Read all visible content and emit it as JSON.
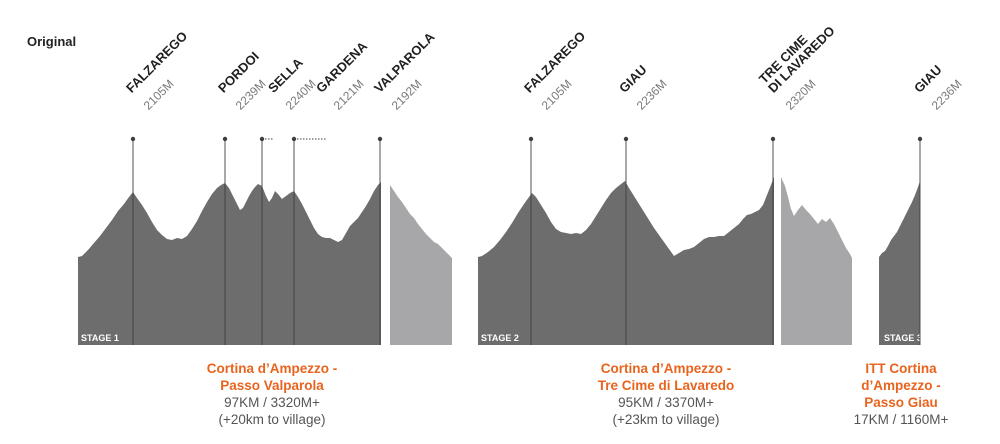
{
  "heading": "Original",
  "colors": {
    "profile_main": "#6d6d6d",
    "profile_return": "#a7a7a9",
    "summit_line": "#3f3f3f",
    "label": "#1f1f1f",
    "elevation": "#7a7a7a",
    "route": "#e8641e",
    "stat": "#555555",
    "stage_tag": "#ffffff"
  },
  "stages": [
    {
      "tag": "STAGE 1",
      "route_lines": [
        "Cortina d’Ampezzo -",
        "Passo Valparola"
      ],
      "stat_lines": [
        "97KM / 3320M+",
        "(+20km to village)"
      ],
      "climbs": [
        {
          "name_lines": [
            "FALZAREGO"
          ],
          "elevation": "2105M"
        },
        {
          "name_lines": [
            "PORDOI"
          ],
          "elevation": "2239M"
        },
        {
          "name_lines": [
            "SELLA"
          ],
          "elevation": "2240M"
        },
        {
          "name_lines": [
            "GARDENA"
          ],
          "elevation": "2121M"
        },
        {
          "name_lines": [
            "VALPAROLA"
          ],
          "elevation": "2192M"
        }
      ]
    },
    {
      "tag": "STAGE 2",
      "route_lines": [
        "Cortina d’Ampezzo -",
        "Tre Cime di Lavaredo"
      ],
      "stat_lines": [
        "95KM / 3370M+",
        "(+23km to village)"
      ],
      "climbs": [
        {
          "name_lines": [
            "FALZAREGO"
          ],
          "elevation": "2105M"
        },
        {
          "name_lines": [
            "GIAU"
          ],
          "elevation": "2236M"
        },
        {
          "name_lines": [
            "TRE CIME",
            "DI LAVAREDO"
          ],
          "elevation": "2320M"
        }
      ]
    },
    {
      "tag": "STAGE 3",
      "route_lines": [
        "ITT Cortina",
        "d’Ampezzo -",
        "Passo Giau"
      ],
      "stat_lines": [
        "17KM / 1160M+"
      ],
      "climbs": [
        {
          "name_lines": [
            "GIAU"
          ],
          "elevation": "2236M"
        }
      ]
    }
  ]
}
